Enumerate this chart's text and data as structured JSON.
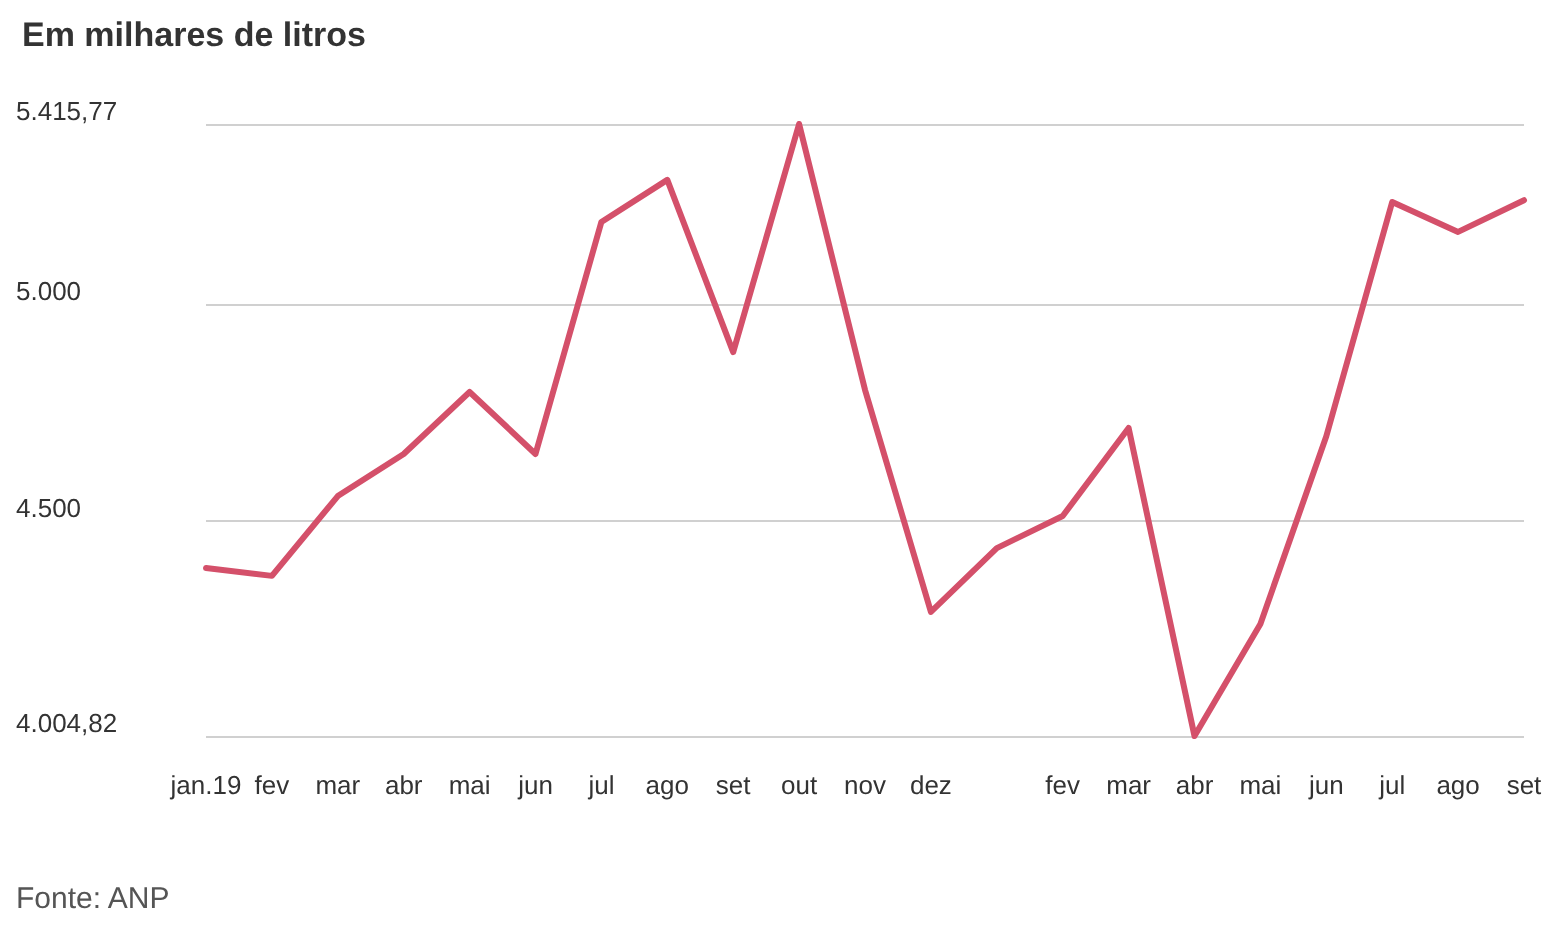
{
  "chart_data": {
    "type": "line",
    "title": "Em milhares de litros",
    "categories": [
      "jan.19",
      "fev",
      "mar",
      "abr",
      "mai",
      "jun",
      "jul",
      "ago",
      "set",
      "out",
      "nov",
      "dez",
      null,
      "fev",
      "mar",
      "abr",
      "mai",
      "jun",
      "jul",
      "ago",
      "set"
    ],
    "series": [
      {
        "color": "#d4506a",
        "values": [
          4392,
          4374,
          4558,
          4655,
          4798,
          4655,
          5190,
          5287,
          4890,
          5415.77,
          4803,
          4291,
          4438,
          4512,
          4715,
          4004.82,
          4263,
          4696,
          5236,
          5167,
          5240
        ]
      }
    ],
    "ylim": [
      4004.82,
      5415.77
    ],
    "yticks": [
      {
        "value": 4004.82,
        "label": "4.004,82"
      },
      {
        "value": 4500,
        "label": "4.500"
      },
      {
        "value": 5000,
        "label": "5.000"
      },
      {
        "value": 5415.77,
        "label": "5.415,77"
      }
    ],
    "grid": "y",
    "marker": "none",
    "line_style": "solid",
    "annotations": [
      "Fonte: ANP"
    ]
  }
}
